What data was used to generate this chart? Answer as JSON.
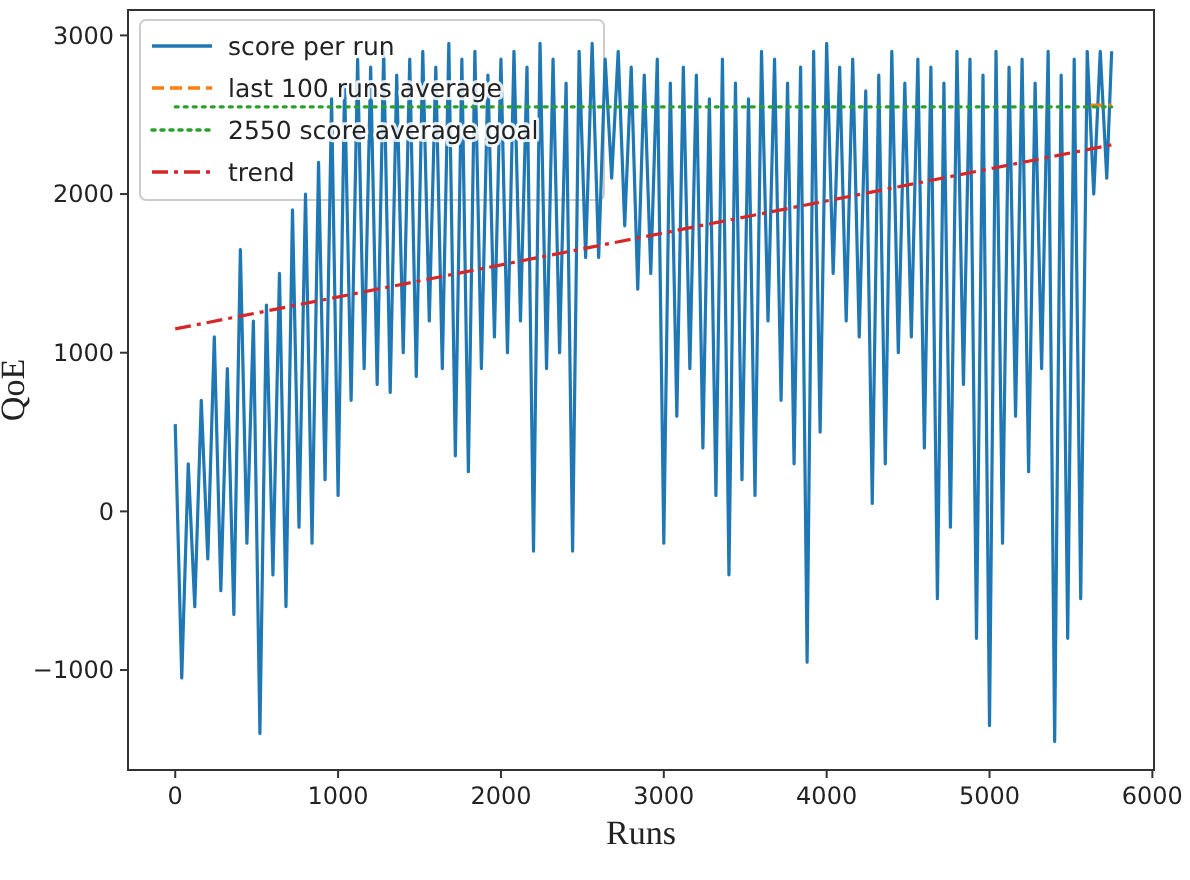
{
  "chart_data": {
    "type": "line",
    "xlabel": "Runs",
    "ylabel": "QoE",
    "xlim": [
      -290,
      6010
    ],
    "ylim": [
      -1630,
      3160
    ],
    "xticks": [
      0,
      1000,
      2000,
      3000,
      4000,
      5000,
      6000
    ],
    "yticks": [
      {
        "value": -1000,
        "label": "−1000"
      },
      0,
      1000,
      2000,
      3000
    ],
    "grid": false,
    "legend": "top left",
    "marker": "none",
    "series": [
      {
        "name": "score per run",
        "color": "#1f77b4",
        "line_style": "solid",
        "x": [
          0,
          40,
          80,
          120,
          160,
          200,
          240,
          280,
          320,
          360,
          400,
          440,
          480,
          520,
          560,
          600,
          640,
          680,
          720,
          760,
          800,
          840,
          880,
          920,
          960,
          1000,
          1040,
          1080,
          1120,
          1160,
          1200,
          1240,
          1280,
          1320,
          1360,
          1400,
          1440,
          1480,
          1520,
          1560,
          1600,
          1640,
          1680,
          1720,
          1760,
          1800,
          1840,
          1880,
          1920,
          1960,
          2000,
          2040,
          2080,
          2120,
          2160,
          2200,
          2240,
          2280,
          2320,
          2360,
          2400,
          2440,
          2480,
          2520,
          2560,
          2600,
          2640,
          2680,
          2720,
          2760,
          2800,
          2840,
          2880,
          2920,
          2960,
          3000,
          3040,
          3080,
          3120,
          3160,
          3200,
          3240,
          3280,
          3320,
          3360,
          3400,
          3440,
          3480,
          3520,
          3560,
          3600,
          3640,
          3680,
          3720,
          3760,
          3800,
          3840,
          3880,
          3920,
          3960,
          4000,
          4040,
          4080,
          4120,
          4160,
          4200,
          4240,
          4280,
          4320,
          4360,
          4400,
          4440,
          4480,
          4520,
          4560,
          4600,
          4640,
          4680,
          4720,
          4760,
          4800,
          4840,
          4880,
          4920,
          4960,
          5000,
          5040,
          5080,
          5120,
          5160,
          5200,
          5240,
          5280,
          5320,
          5360,
          5400,
          5440,
          5480,
          5520,
          5560,
          5600,
          5640,
          5680,
          5720,
          5750
        ],
        "values": [
          550,
          -1050,
          300,
          -600,
          700,
          -300,
          1100,
          -500,
          900,
          -650,
          1650,
          -200,
          1200,
          -1400,
          1300,
          -400,
          1500,
          -600,
          1900,
          -100,
          2000,
          -200,
          2200,
          200,
          2600,
          100,
          2700,
          700,
          2850,
          900,
          2800,
          800,
          2900,
          750,
          2750,
          1000,
          2850,
          850,
          2900,
          1200,
          2800,
          900,
          2950,
          350,
          2850,
          250,
          2900,
          900,
          2750,
          1100,
          2850,
          1000,
          2900,
          1200,
          2800,
          -250,
          2950,
          900,
          2850,
          1000,
          2700,
          -250,
          2900,
          1600,
          2950,
          1600,
          2850,
          2100,
          2900,
          1800,
          2800,
          1400,
          2750,
          1500,
          2850,
          -200,
          2700,
          600,
          2800,
          900,
          2750,
          400,
          2600,
          100,
          2850,
          -400,
          2700,
          200,
          2600,
          100,
          2900,
          1200,
          2850,
          700,
          2700,
          300,
          2800,
          -950,
          2900,
          500,
          2950,
          1500,
          2800,
          1200,
          2850,
          1100,
          2650,
          50,
          2750,
          300,
          2900,
          1000,
          2700,
          1100,
          2850,
          400,
          2800,
          -550,
          2700,
          -100,
          2900,
          800,
          2850,
          -800,
          2750,
          -1350,
          2900,
          -200,
          2800,
          600,
          2850,
          250,
          2700,
          900,
          2900,
          -1450,
          2750,
          -800,
          2850,
          -550,
          2900,
          2000,
          2900,
          2100,
          2900
        ]
      },
      {
        "name": "last 100 runs average",
        "color": "#ff7f0e",
        "line_style": "dashed",
        "x": [
          5620,
          5750
        ],
        "values": [
          2560,
          2560
        ]
      },
      {
        "name": "2550 score average goal",
        "color": "#2ca02c",
        "line_style": "dotted",
        "x": [
          0,
          5750
        ],
        "values": [
          2550,
          2550
        ]
      },
      {
        "name": "trend",
        "color": "#d62728",
        "line_style": "dashdot",
        "x": [
          0,
          5750
        ],
        "values": [
          1150,
          2310
        ]
      }
    ]
  }
}
